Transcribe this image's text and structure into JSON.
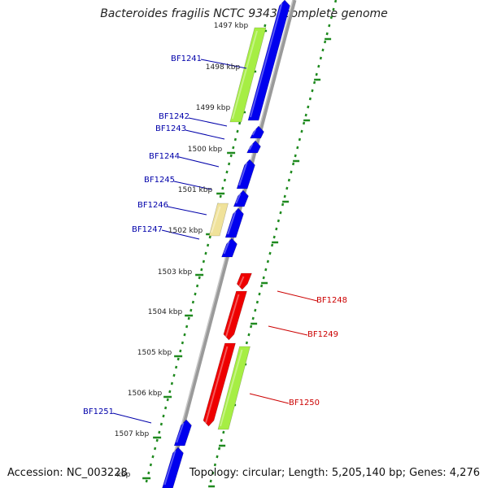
{
  "title": "Bacteroides fragilis NCTC 9343, complete genome",
  "accession": "Accession: NC_003228",
  "summary": "Topology: circular; Length: 5,205,140 bp; Genes: 4,276",
  "colors": {
    "forward_cds": "#0000ee",
    "reverse_cds": "#ee0000",
    "trna_like": "#a6ee44",
    "misc_feature": "#f0e29a",
    "backbone": "#8a8a8a",
    "tick_green": "#1f8a1f",
    "forward_label": "#0000aa",
    "reverse_label": "#cc0000"
  },
  "axis": {
    "ticks": [
      "1497 kbp",
      "1498 kbp",
      "1499 kbp",
      "1500 kbp",
      "1501 kbp",
      "1502 kbp",
      "1503 kbp",
      "1504 kbp",
      "1505 kbp",
      "1506 kbp",
      "1507 kbp"
    ],
    "partial_tick": "kbp"
  },
  "genes": [
    {
      "name": "BF1241",
      "strand": "forward"
    },
    {
      "name": "BF1242",
      "strand": "forward"
    },
    {
      "name": "BF1243",
      "strand": "forward"
    },
    {
      "name": "BF1244",
      "strand": "forward"
    },
    {
      "name": "BF1245",
      "strand": "forward"
    },
    {
      "name": "BF1246",
      "strand": "forward"
    },
    {
      "name": "BF1247",
      "strand": "forward"
    },
    {
      "name": "BF1248",
      "strand": "reverse"
    },
    {
      "name": "BF1249",
      "strand": "reverse"
    },
    {
      "name": "BF1250",
      "strand": "reverse"
    },
    {
      "name": "BF1251",
      "strand": "forward"
    }
  ]
}
